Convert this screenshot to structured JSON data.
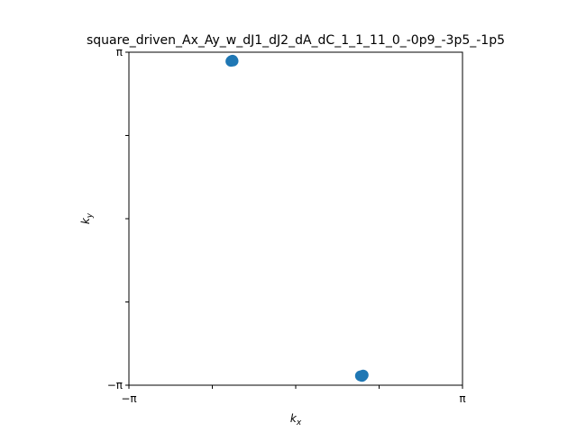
{
  "chart_data": {
    "type": "scatter",
    "title": "square_driven_Ax_Ay_w_dJ1_dJ2_dA_dC_1_1_11_0_-0p9_-3p5_-1p5",
    "xlabel_base": "k",
    "xlabel_sub": "x",
    "ylabel_base": "k",
    "ylabel_sub": "y",
    "xlim": [
      -3.14159,
      3.14159
    ],
    "ylim": [
      -3.14159,
      3.14159
    ],
    "x_ticks": [
      {
        "value": -3.14159,
        "label": "−π"
      },
      {
        "value": -1.5708,
        "label": ""
      },
      {
        "value": 0,
        "label": ""
      },
      {
        "value": 1.5708,
        "label": ""
      },
      {
        "value": 3.14159,
        "label": "π"
      }
    ],
    "y_ticks": [
      {
        "value": -3.14159,
        "label": "−π"
      },
      {
        "value": -1.5708,
        "label": ""
      },
      {
        "value": 0,
        "label": ""
      },
      {
        "value": 1.5708,
        "label": ""
      },
      {
        "value": 3.14159,
        "label": "π"
      }
    ],
    "grid": false,
    "marker_color": "#1f77b4",
    "points": [
      {
        "x": -1.21,
        "y": 2.98
      },
      {
        "x": -1.19,
        "y": 2.99
      },
      {
        "x": -1.22,
        "y": 2.97
      },
      {
        "x": -1.2,
        "y": 2.985
      },
      {
        "x": -1.18,
        "y": 2.975
      },
      {
        "x": 1.24,
        "y": -2.97
      },
      {
        "x": 1.26,
        "y": -2.96
      },
      {
        "x": 1.22,
        "y": -2.965
      },
      {
        "x": 1.25,
        "y": -2.975
      },
      {
        "x": 1.27,
        "y": -2.95
      }
    ]
  }
}
